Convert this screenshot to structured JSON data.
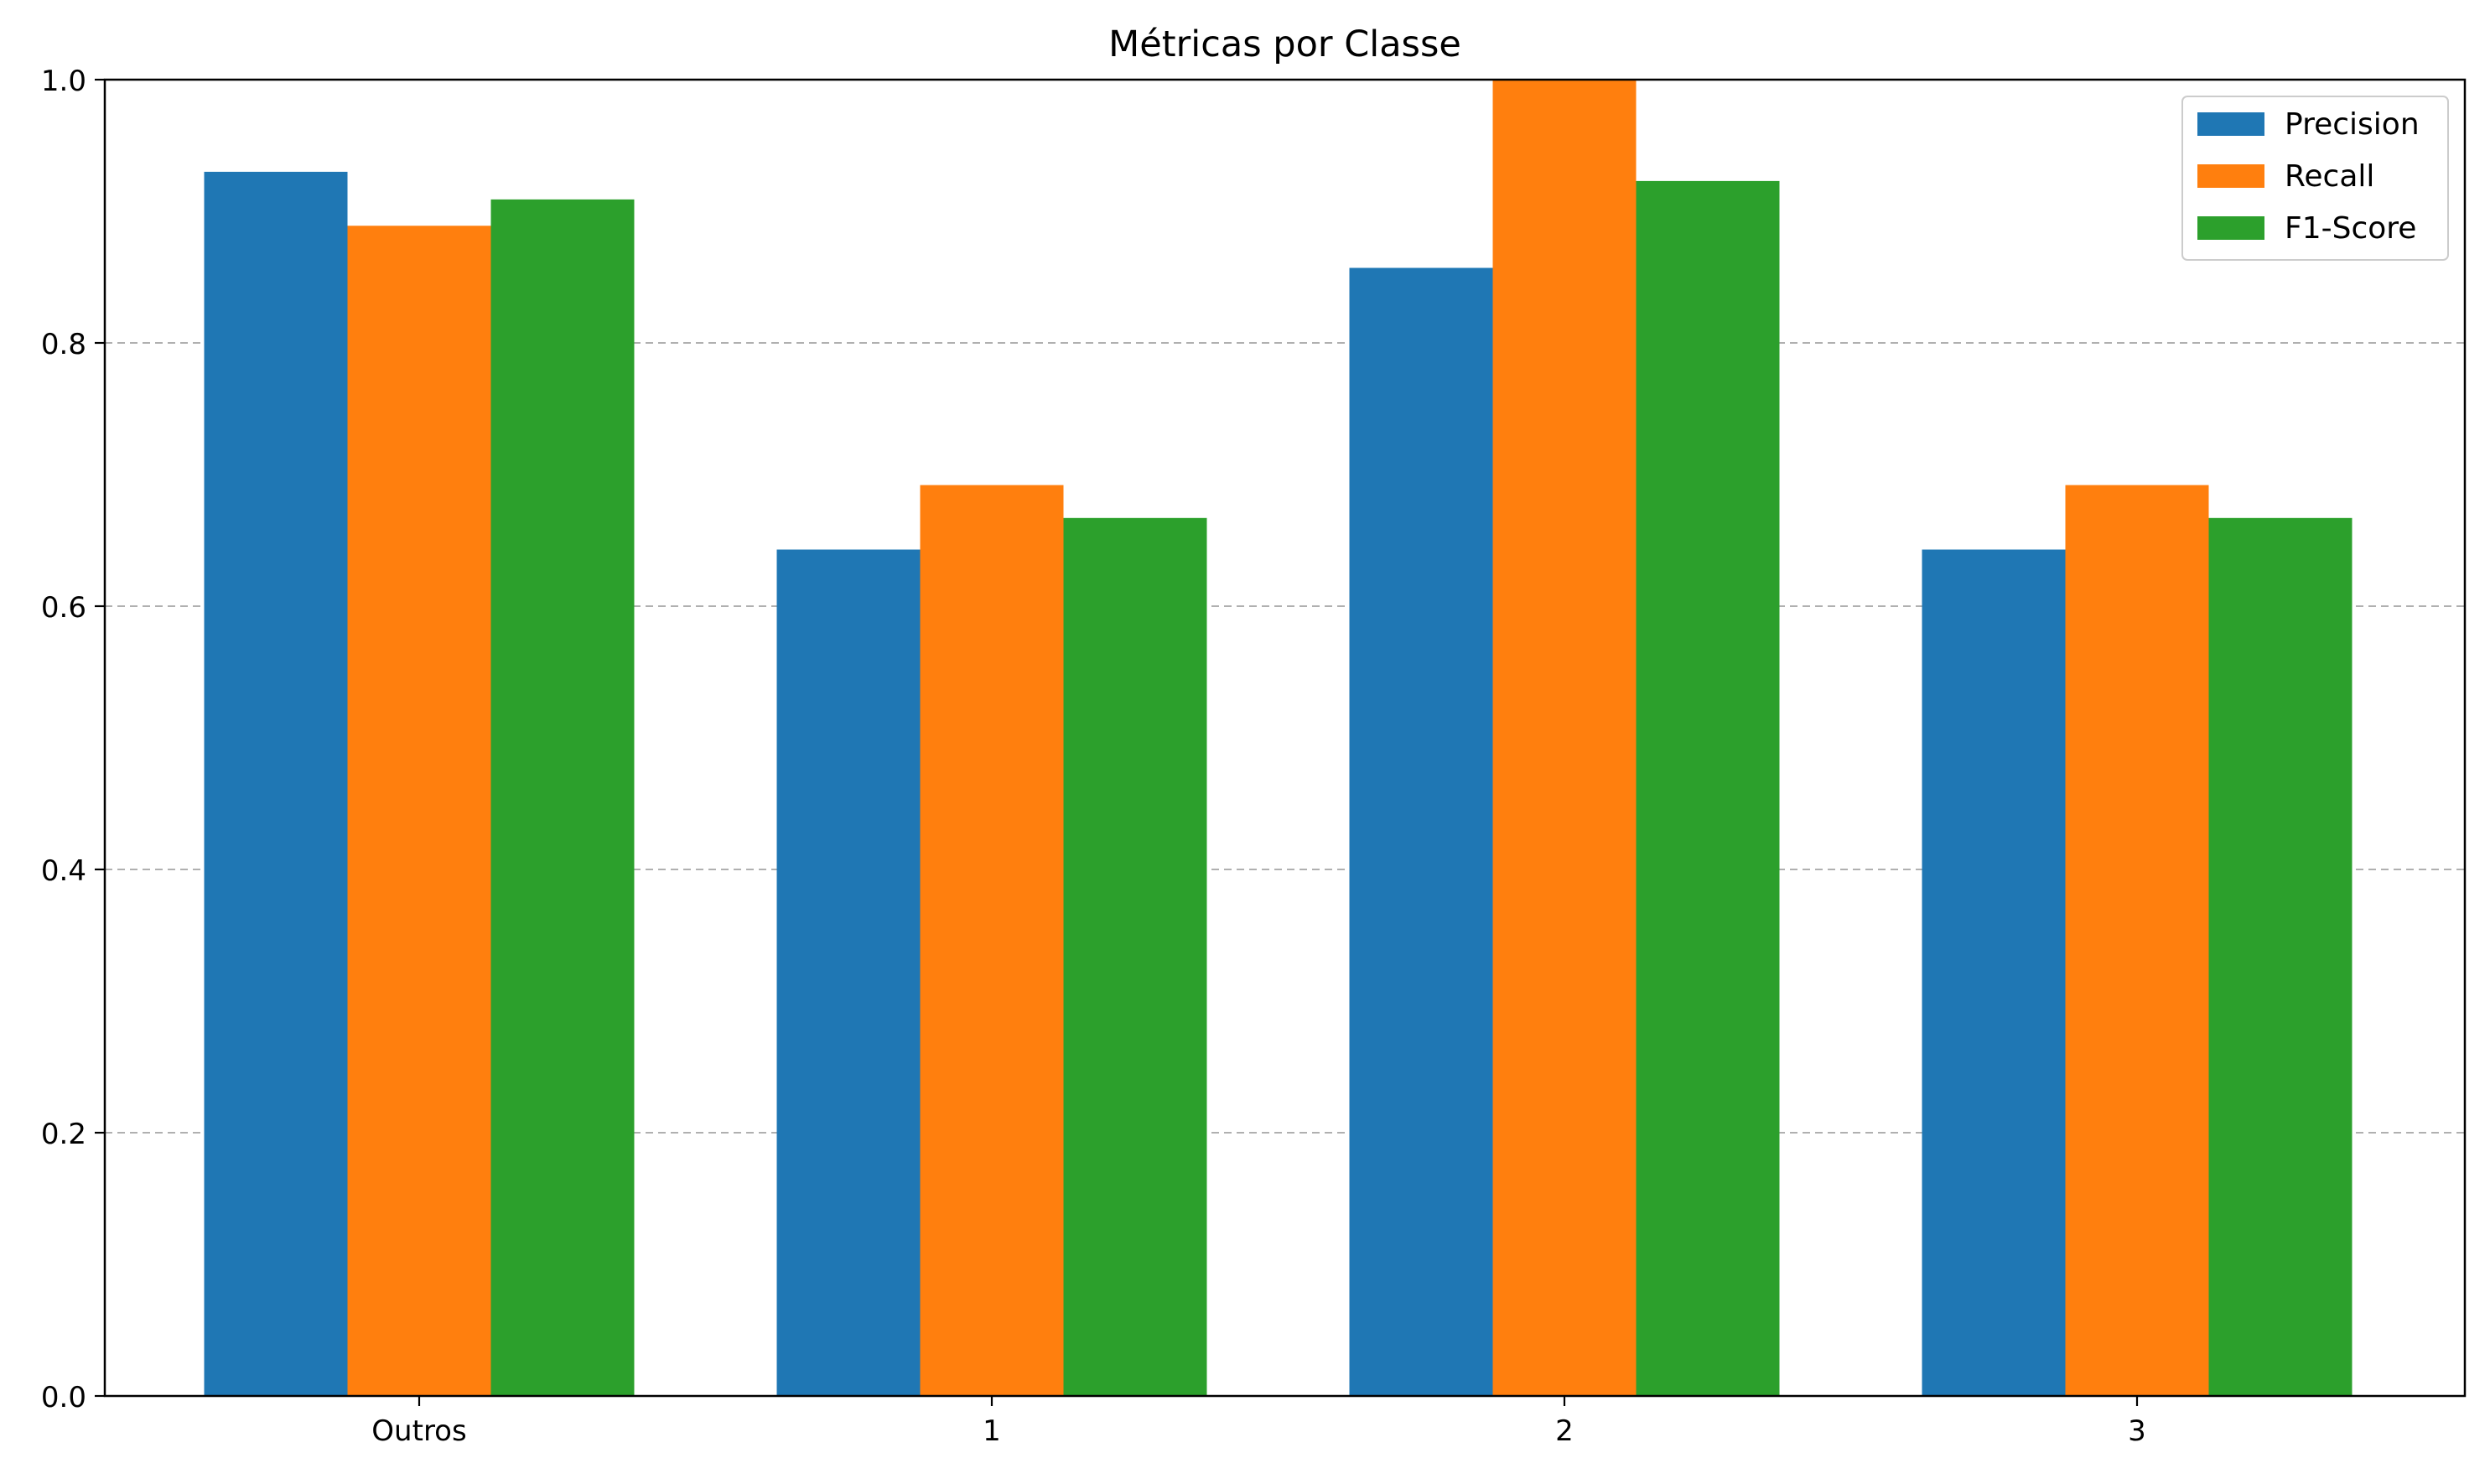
{
  "chart_data": {
    "type": "bar",
    "title": "Métricas por Classe",
    "xlabel": "",
    "ylabel": "",
    "categories": [
      "Outros",
      "1",
      "2",
      "3"
    ],
    "series": [
      {
        "name": "Precision",
        "color": "#1f77b4",
        "values": [
          0.93,
          0.643,
          0.857,
          0.643
        ]
      },
      {
        "name": "Recall",
        "color": "#ff7f0e",
        "values": [
          0.889,
          0.692,
          1.0,
          0.692
        ]
      },
      {
        "name": "F1-Score",
        "color": "#2ca02c",
        "values": [
          0.909,
          0.667,
          0.923,
          0.667
        ]
      }
    ],
    "ylim": [
      0.0,
      1.0
    ],
    "yticks": [
      0.0,
      0.2,
      0.4,
      0.6,
      0.8,
      1.0
    ],
    "ytick_labels": [
      "0.0",
      "0.2",
      "0.4",
      "0.6",
      "0.8",
      "1.0"
    ],
    "grid": "y-dashed",
    "legend_position": "top-right"
  }
}
